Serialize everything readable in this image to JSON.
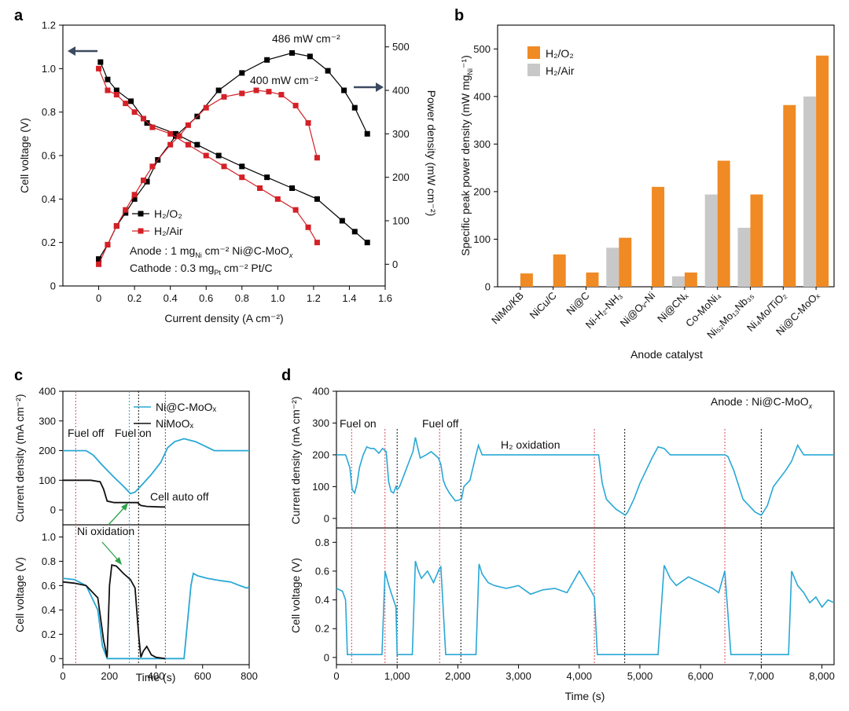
{
  "chart_data": [
    {
      "panel": "a",
      "type": "line",
      "xlabel": "Current density (A cm⁻²)",
      "ylabel_left": "Cell voltage (V)",
      "ylabel_right": "Power density (mW cm⁻²)",
      "xlim": [
        -0.2,
        1.6
      ],
      "ylim_left": [
        0,
        1.2
      ],
      "ylim_right": [
        -50,
        550
      ],
      "xticks": [
        "0",
        "0.2",
        "0.4",
        "0.6",
        "0.8",
        "1.0",
        "1.2",
        "1.4",
        "1.6"
      ],
      "yticks_left": [
        "0",
        "0.2",
        "0.4",
        "0.6",
        "0.8",
        "1.0",
        "1.2"
      ],
      "yticks_right": [
        "0",
        "100",
        "200",
        "300",
        "400",
        "500"
      ],
      "annotations": {
        "peak1": "486 mW cm⁻²",
        "peak2": "400 mW cm⁻²",
        "anode": "Anode : 1 mg",
        "anode_sub": "Ni",
        "anode_rest": " cm⁻² Ni@C-MoO",
        "anode_x": "x",
        "cathode": "Cathode : 0.3 mg",
        "cathode_sub": "Pt",
        "cathode_rest": " cm⁻² Pt/C"
      },
      "series": [
        {
          "name": "H₂/O₂",
          "color": "#000000",
          "marker": "square",
          "voltage": {
            "x": [
              0.01,
              0.05,
              0.1,
              0.18,
              0.27,
              0.43,
              0.55,
              0.67,
              0.8,
              0.94,
              1.08,
              1.22,
              1.36,
              1.43,
              1.5
            ],
            "y": [
              1.03,
              0.95,
              0.9,
              0.85,
              0.75,
              0.7,
              0.65,
              0.6,
              0.55,
              0.5,
              0.45,
              0.4,
              0.3,
              0.25,
              0.2
            ]
          },
          "power": {
            "x": [
              0,
              0.05,
              0.1,
              0.15,
              0.2,
              0.27,
              0.33,
              0.43,
              0.55,
              0.67,
              0.8,
              0.94,
              1.08,
              1.18,
              1.28,
              1.37,
              1.43,
              1.5
            ],
            "y": [
              12,
              45,
              88,
              118,
              150,
              190,
              240,
              295,
              340,
              400,
              440,
              470,
              486,
              478,
              445,
              400,
              360,
              300
            ]
          }
        },
        {
          "name": "H₂/Air",
          "color": "#d42027",
          "marker": "square",
          "voltage": {
            "x": [
              0,
              0.05,
              0.1,
              0.15,
              0.2,
              0.25,
              0.3,
              0.4,
              0.5,
              0.6,
              0.7,
              0.8,
              0.9,
              1.0,
              1.1,
              1.17,
              1.22
            ],
            "y": [
              1.0,
              0.9,
              0.88,
              0.84,
              0.8,
              0.77,
              0.73,
              0.7,
              0.65,
              0.6,
              0.55,
              0.5,
              0.45,
              0.4,
              0.35,
              0.27,
              0.2
            ]
          },
          "power": {
            "x": [
              0,
              0.05,
              0.1,
              0.15,
              0.2,
              0.25,
              0.3,
              0.4,
              0.45,
              0.5,
              0.6,
              0.7,
              0.8,
              0.88,
              0.95,
              1.02,
              1.1,
              1.17,
              1.22
            ],
            "y": [
              0,
              45,
              88,
              125,
              160,
              193,
              225,
              275,
              295,
              320,
              360,
              385,
              393,
              400,
              397,
              390,
              365,
              325,
              245
            ]
          }
        }
      ]
    },
    {
      "panel": "b",
      "type": "bar",
      "title": "",
      "xlabel": "Anode catalyst",
      "ylabel": "Specific peak power density (mW mg",
      "ylabel_sub": "Ni",
      "ylabel_end": "⁻¹)",
      "ylim": [
        0,
        500
      ],
      "yticks": [
        "0",
        "100",
        "200",
        "300",
        "400",
        "500"
      ],
      "categories": [
        "NiMo/KB",
        "NiCu/C",
        "Ni@C",
        "Ni-H₂-NH₃",
        "Ni@Oᵥ-Ni",
        "Ni@CNₓ",
        "Co-MoNi₄",
        "Ni₅₂Mo₁₃Nb₃₅",
        "Ni₄Mo/TiO₂",
        "Ni@C-MoOₓ"
      ],
      "series": [
        {
          "name": "H₂/O₂",
          "color": "#f08a24",
          "values": [
            28,
            68,
            30,
            103,
            210,
            30,
            265,
            194,
            382,
            486
          ]
        },
        {
          "name": "H₂/Air",
          "color": "#c8c8c8",
          "values": [
            null,
            null,
            null,
            82,
            null,
            22,
            194,
            124,
            null,
            400
          ]
        }
      ]
    },
    {
      "panel": "c",
      "type": "line",
      "xlabel": "Time (s)",
      "ylabel_top": "Current density (mA cm⁻²)",
      "ylabel_bottom": "Cell voltage (V)",
      "xlim": [
        0,
        800
      ],
      "ylim_top": [
        -50,
        400
      ],
      "ylim_bottom": [
        -0.05,
        1.1
      ],
      "xticks": [
        "0",
        "200",
        "400",
        "600",
        "800"
      ],
      "yticks_top": [
        "0",
        "100",
        "200",
        "300",
        "400"
      ],
      "yticks_bottom": [
        "0",
        "0.2",
        "0.4",
        "0.6",
        "0.8",
        "1.0"
      ],
      "annotations": {
        "fuel_off": "Fuel off",
        "fuel_on": "Fuel on",
        "auto_off": "Cell auto off",
        "ni_ox": "Ni oxidation"
      },
      "legend": [
        "Ni@C-MoOₓ",
        "NiMoOₓ"
      ],
      "series": [
        {
          "name": "Ni@C-MoOₓ",
          "color": "#29a8d6",
          "current": {
            "x": [
              0,
              40,
              100,
              130,
              170,
              220,
              260,
              290,
              310,
              340,
              380,
              420,
              450,
              480,
              520,
              570,
              650,
              800
            ],
            "y": [
              200,
              200,
              200,
              185,
              150,
              110,
              80,
              55,
              60,
              85,
              120,
              160,
              210,
              230,
              240,
              230,
              200,
              200
            ]
          },
          "voltage": {
            "x": [
              0,
              50,
              100,
              150,
              170,
              190,
              200,
              250,
              300,
              350,
              400,
              450,
              500,
              520,
              550,
              560,
              580,
              620,
              680,
              720,
              760,
              790,
              800
            ],
            "y": [
              0.66,
              0.65,
              0.6,
              0.4,
              0.1,
              0.0,
              0.0,
              0.0,
              0.0,
              0.0,
              0.0,
              0.0,
              0.0,
              0.0,
              0.6,
              0.7,
              0.68,
              0.66,
              0.64,
              0.63,
              0.6,
              0.58,
              0.59
            ]
          }
        },
        {
          "name": "NiMoOₓ",
          "color": "#111111",
          "current": {
            "x": [
              0,
              60,
              120,
              160,
              175,
              190,
              220,
              260,
              300,
              320,
              335,
              360,
              420,
              440
            ],
            "y": [
              100,
              100,
              100,
              95,
              70,
              30,
              25,
              25,
              25,
              25,
              15,
              12,
              10,
              10
            ]
          },
          "voltage": {
            "x": [
              0,
              50,
              100,
              150,
              175,
              190,
              200,
              210,
              230,
              260,
              290,
              310,
              325,
              335,
              345,
              360,
              380,
              400,
              440
            ],
            "y": [
              0.63,
              0.62,
              0.6,
              0.5,
              0.15,
              0.01,
              0.6,
              0.77,
              0.76,
              0.7,
              0.65,
              0.58,
              0.2,
              0.01,
              0.06,
              0.1,
              0.03,
              0.01,
              0.0
            ]
          }
        }
      ]
    },
    {
      "panel": "d",
      "type": "line",
      "xlabel": "Time (s)",
      "ylabel_top": "Current density (mA cm⁻²)",
      "ylabel_bottom": "Cell voltage (V)",
      "xlim": [
        0,
        8200
      ],
      "ylim_top": [
        -30,
        400
      ],
      "ylim_bottom": [
        -0.05,
        0.9
      ],
      "xticks": [
        "0",
        "1,000",
        "2,000",
        "3,000",
        "4,000",
        "5,000",
        "6,000",
        "7,000",
        "8,000"
      ],
      "yticks_top": [
        "0",
        "100",
        "200",
        "300",
        "400"
      ],
      "yticks_bottom": [
        "0",
        "0.2",
        "0.4",
        "0.6",
        "0.8"
      ],
      "annotations": {
        "anode_label": "Anode : Ni@C-MoO",
        "anode_x": "x",
        "fuel_on": "Fuel on",
        "fuel_off": "Fuel off",
        "h2ox": "H₂ oxidation"
      },
      "series": [
        {
          "name": "Ni@C-MoOₓ",
          "color": "#29a8d6",
          "current": {
            "x": [
              0,
              150,
              220,
              260,
              300,
              340,
              380,
              440,
              500,
              560,
              620,
              700,
              760,
              820,
              860,
              900,
              940,
              980,
              1000,
              1040,
              1100,
              1200,
              1260,
              1300,
              1380,
              1480,
              1560,
              1620,
              1680,
              1720,
              1760,
              1800,
              1860,
              1960,
              2060,
              2100,
              2200,
              2300,
              2340,
              2400,
              2500,
              3000,
              3500,
              4000,
              4200,
              4320,
              4380,
              4450,
              4600,
              4760,
              4800,
              4900,
              5000,
              5100,
              5200,
              5300,
              5400,
              5500,
              6000,
              6400,
              6450,
              6550,
              6700,
              6900,
              7000,
              7100,
              7200,
              7400,
              7500,
              7600,
              7700,
              8200
            ],
            "y": [
              200,
              200,
              160,
              90,
              80,
              110,
              160,
              200,
              225,
              220,
              220,
              205,
              220,
              210,
              115,
              85,
              80,
              100,
              90,
              100,
              130,
              180,
              210,
              255,
              190,
              200,
              210,
              200,
              190,
              170,
              120,
              100,
              80,
              55,
              60,
              100,
              120,
              200,
              230,
              200,
              200,
              200,
              200,
              200,
              200,
              200,
              110,
              60,
              30,
              10,
              20,
              60,
              110,
              150,
              190,
              225,
              220,
              200,
              200,
              200,
              195,
              150,
              60,
              20,
              10,
              40,
              100,
              150,
              180,
              230,
              200,
              200
            ]
          },
          "voltage": {
            "x": [
              0,
              100,
              150,
              180,
              200,
              250,
              700,
              750,
              800,
              850,
              900,
              980,
              1000,
              1100,
              1200,
              1250,
              1300,
              1350,
              1400,
              1500,
              1600,
              1700,
              1720,
              1800,
              1900,
              2000,
              2100,
              2200,
              2300,
              2350,
              2400,
              2500,
              2600,
              2800,
              3000,
              3200,
              3400,
              3600,
              3800,
              4000,
              4200,
              4250,
              4300,
              4400,
              4600,
              4800,
              5000,
              5200,
              5300,
              5400,
              5500,
              5600,
              5800,
              6000,
              6200,
              6300,
              6400,
              6500,
              6600,
              6800,
              7000,
              7200,
              7400,
              7450,
              7500,
              7600,
              7700,
              7800,
              7900,
              8000,
              8100,
              8200
            ],
            "y": [
              0.48,
              0.46,
              0.4,
              0.02,
              0.02,
              0.02,
              0.02,
              0.02,
              0.6,
              0.52,
              0.45,
              0.35,
              0.02,
              0.02,
              0.02,
              0.02,
              0.67,
              0.6,
              0.55,
              0.6,
              0.52,
              0.62,
              0.63,
              0.02,
              0.02,
              0.02,
              0.02,
              0.02,
              0.02,
              0.65,
              0.58,
              0.52,
              0.5,
              0.48,
              0.5,
              0.44,
              0.47,
              0.48,
              0.45,
              0.6,
              0.46,
              0.42,
              0.02,
              0.02,
              0.02,
              0.02,
              0.02,
              0.02,
              0.02,
              0.64,
              0.55,
              0.5,
              0.56,
              0.52,
              0.48,
              0.45,
              0.6,
              0.02,
              0.02,
              0.02,
              0.02,
              0.02,
              0.02,
              0.02,
              0.6,
              0.5,
              0.45,
              0.38,
              0.42,
              0.35,
              0.4,
              0.38
            ]
          }
        }
      ],
      "vlines_red": [
        250,
        800,
        1700,
        4250,
        6400
      ],
      "vlines_black": [
        1000,
        2050,
        4750,
        7000
      ]
    }
  ]
}
